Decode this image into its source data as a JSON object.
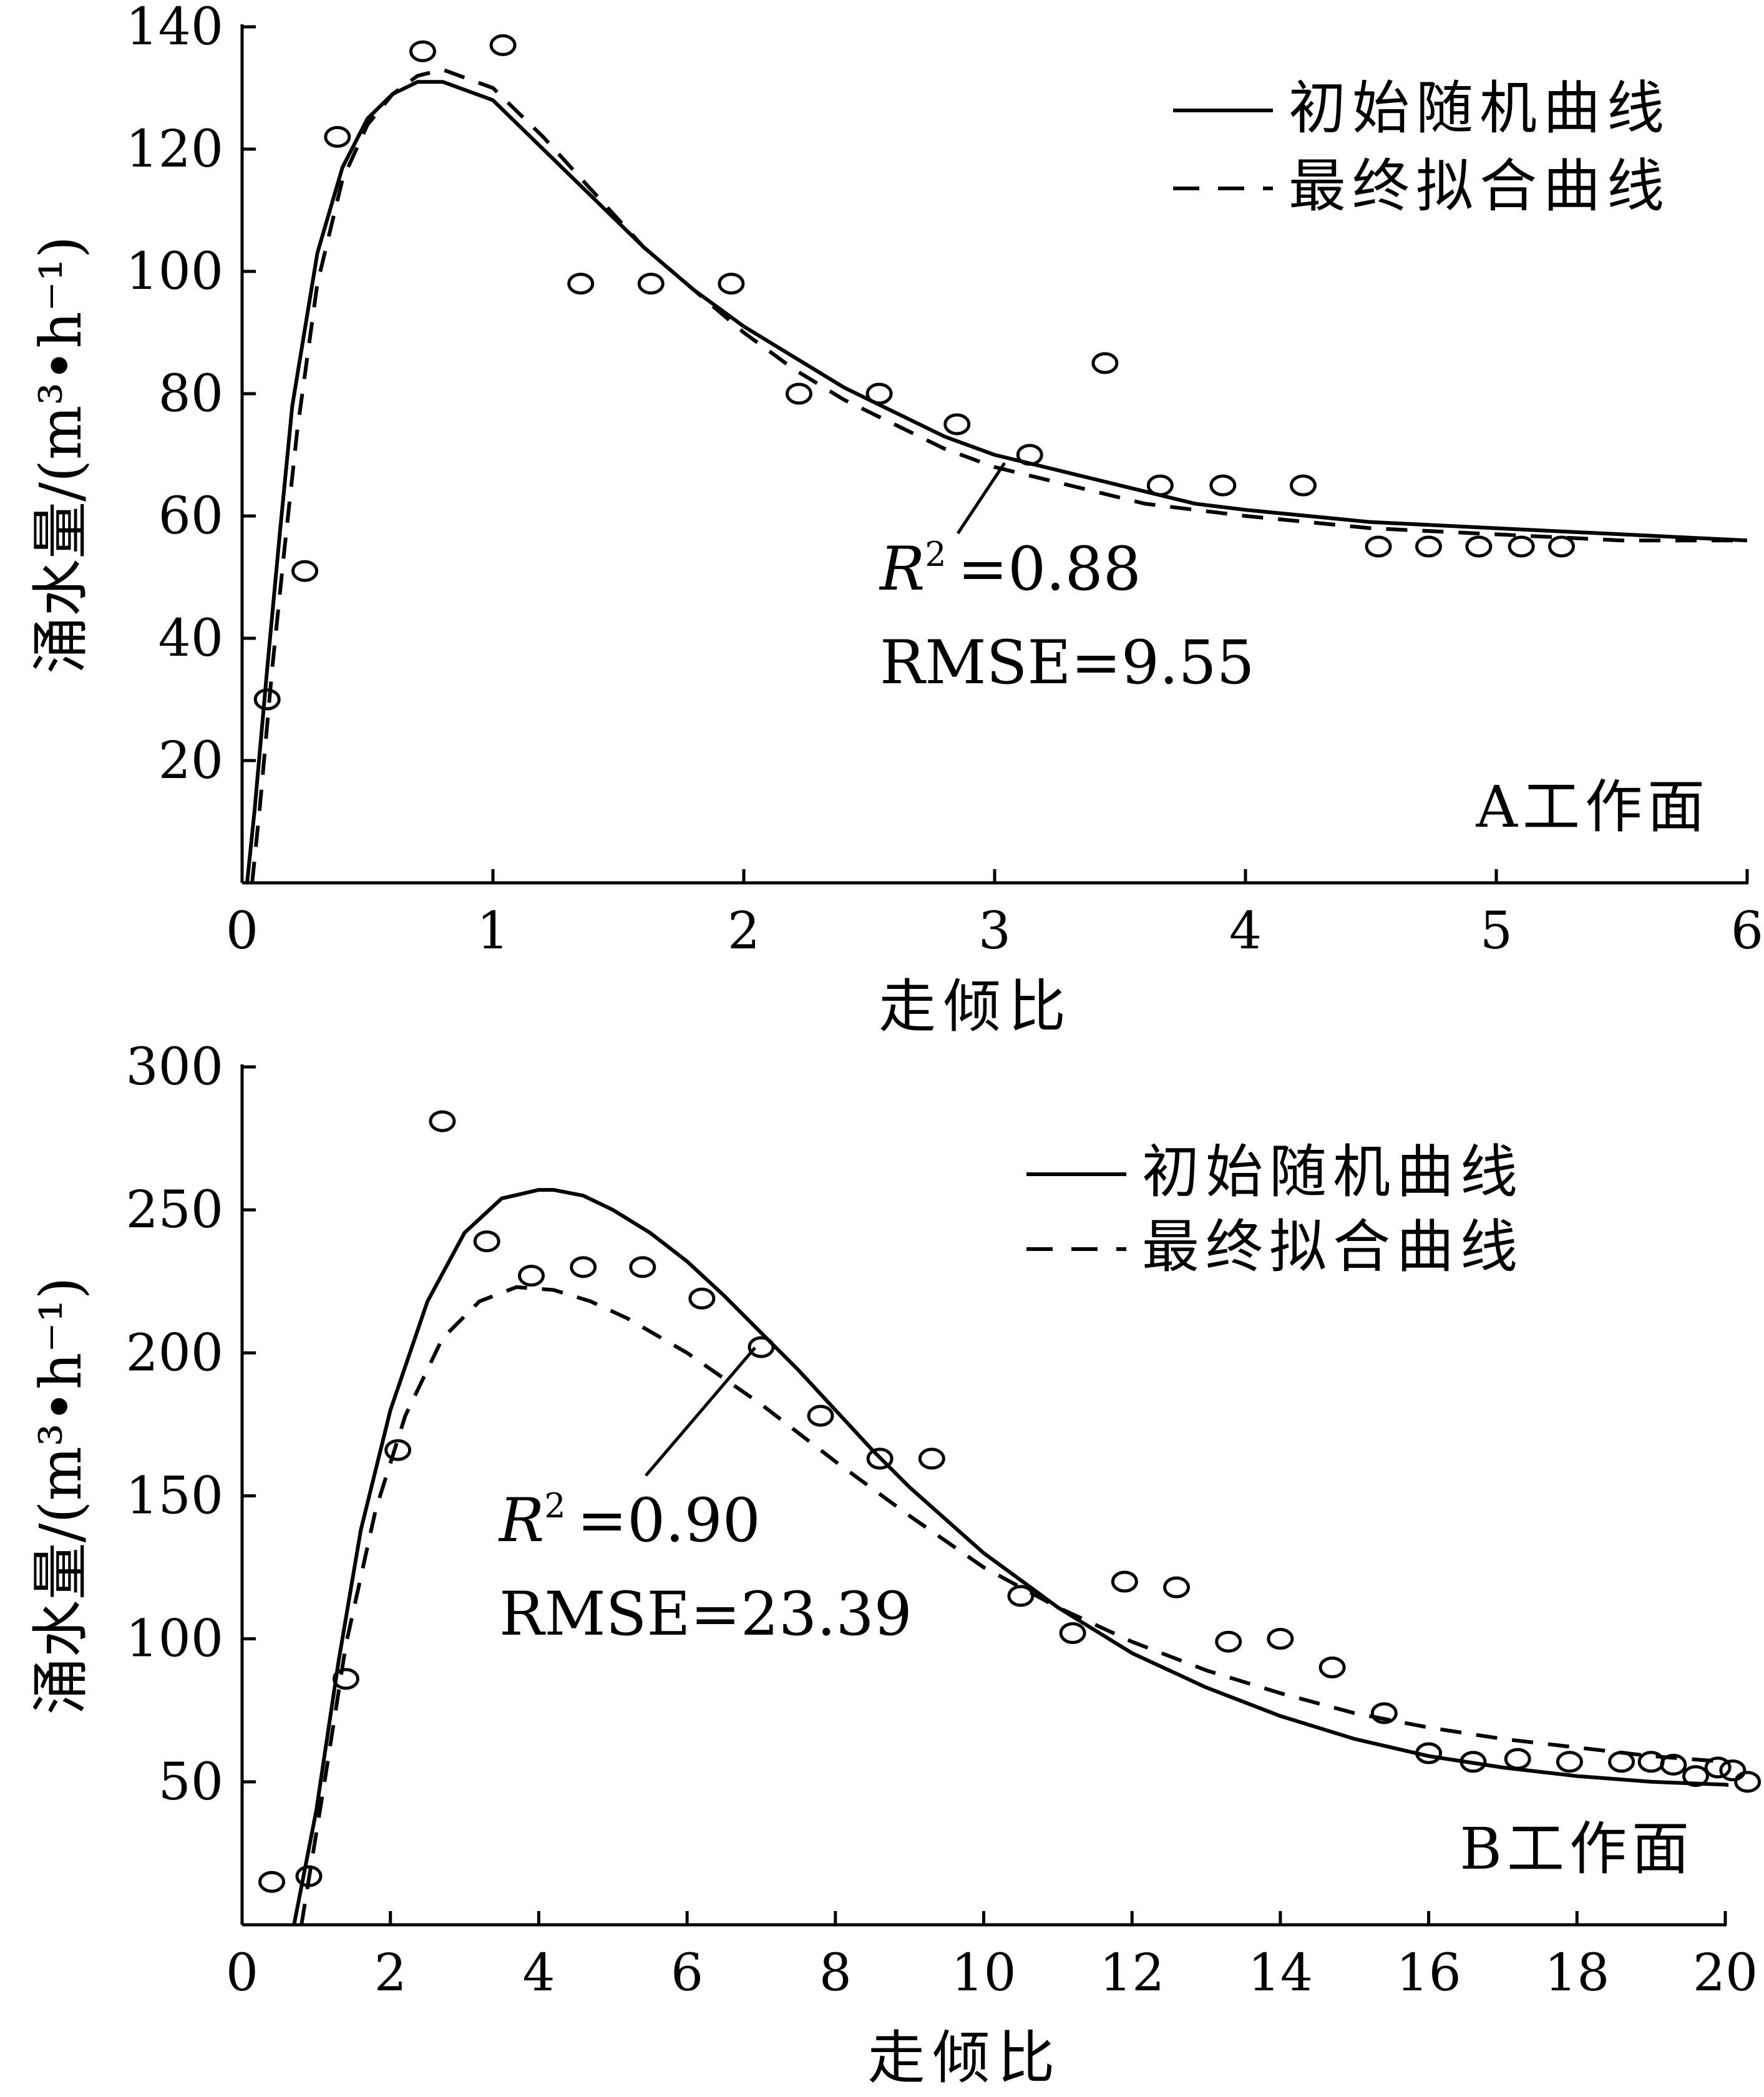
{
  "chart_data": [
    {
      "type": "scatter",
      "panel_label": "A工作面",
      "xlabel": "走倾比",
      "ylabel": "涌水量/(m³•h⁻¹)",
      "xlim": [
        0,
        6
      ],
      "ylim": [
        0,
        140
      ],
      "xticks": [
        0,
        1,
        2,
        3,
        4,
        5,
        6
      ],
      "yticks": [
        20,
        40,
        60,
        80,
        100,
        120,
        140
      ],
      "legend_position": "top-right",
      "legend": [
        {
          "label": "初始随机曲线",
          "style": "solid"
        },
        {
          "label": "最终拟合曲线",
          "style": "dashed"
        }
      ],
      "annotation": {
        "r2_prefix": "R",
        "r2_value": "=0.88",
        "rmse": "RMSE=9.55"
      },
      "points": [
        [
          0.1,
          30
        ],
        [
          0.25,
          51
        ],
        [
          0.38,
          122
        ],
        [
          0.72,
          136
        ],
        [
          1.04,
          137
        ],
        [
          1.35,
          98
        ],
        [
          1.63,
          98
        ],
        [
          1.95,
          98
        ],
        [
          2.22,
          80
        ],
        [
          2.54,
          80
        ],
        [
          2.85,
          75
        ],
        [
          3.14,
          70
        ],
        [
          3.44,
          85
        ],
        [
          3.66,
          65
        ],
        [
          3.91,
          65
        ],
        [
          4.23,
          65
        ],
        [
          4.53,
          55
        ],
        [
          4.73,
          55
        ],
        [
          4.93,
          55
        ],
        [
          5.1,
          55
        ],
        [
          5.26,
          55
        ]
      ],
      "series": [
        {
          "name": "初始随机曲线",
          "style": "solid",
          "x": [
            0.02,
            0.05,
            0.1,
            0.15,
            0.2,
            0.3,
            0.4,
            0.5,
            0.6,
            0.7,
            0.8,
            1.0,
            1.2,
            1.4,
            1.6,
            1.8,
            2.0,
            2.2,
            2.4,
            2.6,
            2.8,
            3.0,
            3.2,
            3.4,
            3.6,
            3.8,
            4.0,
            4.5,
            5.0,
            5.5,
            6.0
          ],
          "y": [
            0,
            12,
            35,
            57,
            78,
            103,
            117,
            125,
            129,
            131,
            131,
            128,
            120,
            112,
            104,
            97,
            91,
            86,
            81,
            77,
            73,
            70,
            68,
            66,
            64,
            62,
            61,
            59,
            58,
            57,
            56
          ]
        },
        {
          "name": "最终拟合曲线",
          "style": "dashed",
          "x": [
            0.04,
            0.07,
            0.12,
            0.17,
            0.22,
            0.3,
            0.4,
            0.5,
            0.6,
            0.7,
            0.8,
            1.0,
            1.2,
            1.4,
            1.6,
            1.8,
            2.0,
            2.2,
            2.4,
            2.6,
            2.8,
            3.0,
            3.2,
            3.4,
            3.6,
            3.8,
            4.0,
            4.5,
            5.0,
            5.5,
            6.0
          ],
          "y": [
            0,
            12,
            35,
            55,
            74,
            98,
            115,
            124,
            129,
            132,
            133,
            130,
            122,
            113,
            104,
            97,
            90,
            84,
            79,
            75,
            71,
            68,
            66,
            64,
            62,
            61,
            60,
            58,
            57,
            56,
            56
          ]
        }
      ]
    },
    {
      "type": "scatter",
      "panel_label": "B工作面",
      "xlabel": "走倾比",
      "ylabel": "涌水量/(m³•h⁻¹)",
      "xlim": [
        0,
        20
      ],
      "ylim": [
        0,
        300
      ],
      "xticks": [
        0,
        2,
        4,
        6,
        8,
        10,
        12,
        14,
        16,
        18,
        20
      ],
      "yticks": [
        50,
        100,
        150,
        200,
        250,
        300
      ],
      "legend_position": "top-right",
      "legend": [
        {
          "label": "初始随机曲线",
          "style": "solid"
        },
        {
          "label": "最终拟合曲线",
          "style": "dashed"
        }
      ],
      "annotation": {
        "r2_prefix": "R",
        "r2_value": "=0.90",
        "rmse": "RMSE=23.39"
      },
      "points": [
        [
          0.4,
          15
        ],
        [
          0.9,
          17
        ],
        [
          1.4,
          86
        ],
        [
          2.1,
          166
        ],
        [
          2.7,
          281
        ],
        [
          3.3,
          239
        ],
        [
          3.9,
          227
        ],
        [
          4.6,
          230
        ],
        [
          5.4,
          230
        ],
        [
          6.2,
          219
        ],
        [
          7.0,
          202
        ],
        [
          7.8,
          178
        ],
        [
          8.6,
          163
        ],
        [
          9.3,
          163
        ],
        [
          10.5,
          115
        ],
        [
          11.2,
          102
        ],
        [
          11.9,
          120
        ],
        [
          12.6,
          118
        ],
        [
          13.3,
          99
        ],
        [
          14.0,
          100
        ],
        [
          14.7,
          90
        ],
        [
          15.4,
          74
        ],
        [
          16.0,
          60
        ],
        [
          16.6,
          57
        ],
        [
          17.2,
          58
        ],
        [
          17.9,
          57
        ],
        [
          18.6,
          57
        ],
        [
          19.0,
          57
        ],
        [
          19.3,
          56
        ],
        [
          19.6,
          52
        ],
        [
          19.9,
          55
        ],
        [
          20.1,
          54
        ],
        [
          20.3,
          50
        ]
      ],
      "series": [
        {
          "name": "初始随机曲线",
          "style": "solid",
          "x": [
            0.7,
            1.0,
            1.3,
            1.6,
            2.0,
            2.5,
            3.0,
            3.5,
            4.0,
            4.2,
            4.6,
            5.0,
            5.5,
            6.0,
            6.5,
            7.0,
            7.5,
            8.0,
            8.5,
            9.0,
            10.0,
            11.0,
            12.0,
            13.0,
            14.0,
            15.0,
            16.0,
            17.0,
            18.0,
            19.0,
            20.0,
            20.3
          ],
          "y": [
            0,
            40,
            92,
            138,
            180,
            218,
            242,
            254,
            257,
            257,
            255,
            250,
            242,
            232,
            220,
            207,
            194,
            180,
            166,
            153,
            130,
            111,
            95,
            83,
            73,
            65,
            59,
            55,
            52,
            50,
            49,
            48
          ]
        },
        {
          "name": "最终拟合曲线",
          "style": "dashed",
          "x": [
            0.8,
            1.1,
            1.4,
            1.8,
            2.2,
            2.7,
            3.2,
            3.7,
            4.2,
            4.7,
            5.2,
            6.0,
            7.0,
            8.0,
            9.0,
            10.0,
            11.0,
            12.0,
            13.0,
            14.0,
            15.0,
            16.0,
            17.0,
            18.0,
            19.0,
            20.0,
            20.3
          ],
          "y": [
            0,
            48,
            98,
            145,
            178,
            205,
            218,
            223,
            222,
            218,
            212,
            200,
            182,
            162,
            143,
            125,
            111,
            99,
            89,
            81,
            74,
            69,
            65,
            62,
            59,
            57,
            56
          ]
        }
      ]
    }
  ]
}
